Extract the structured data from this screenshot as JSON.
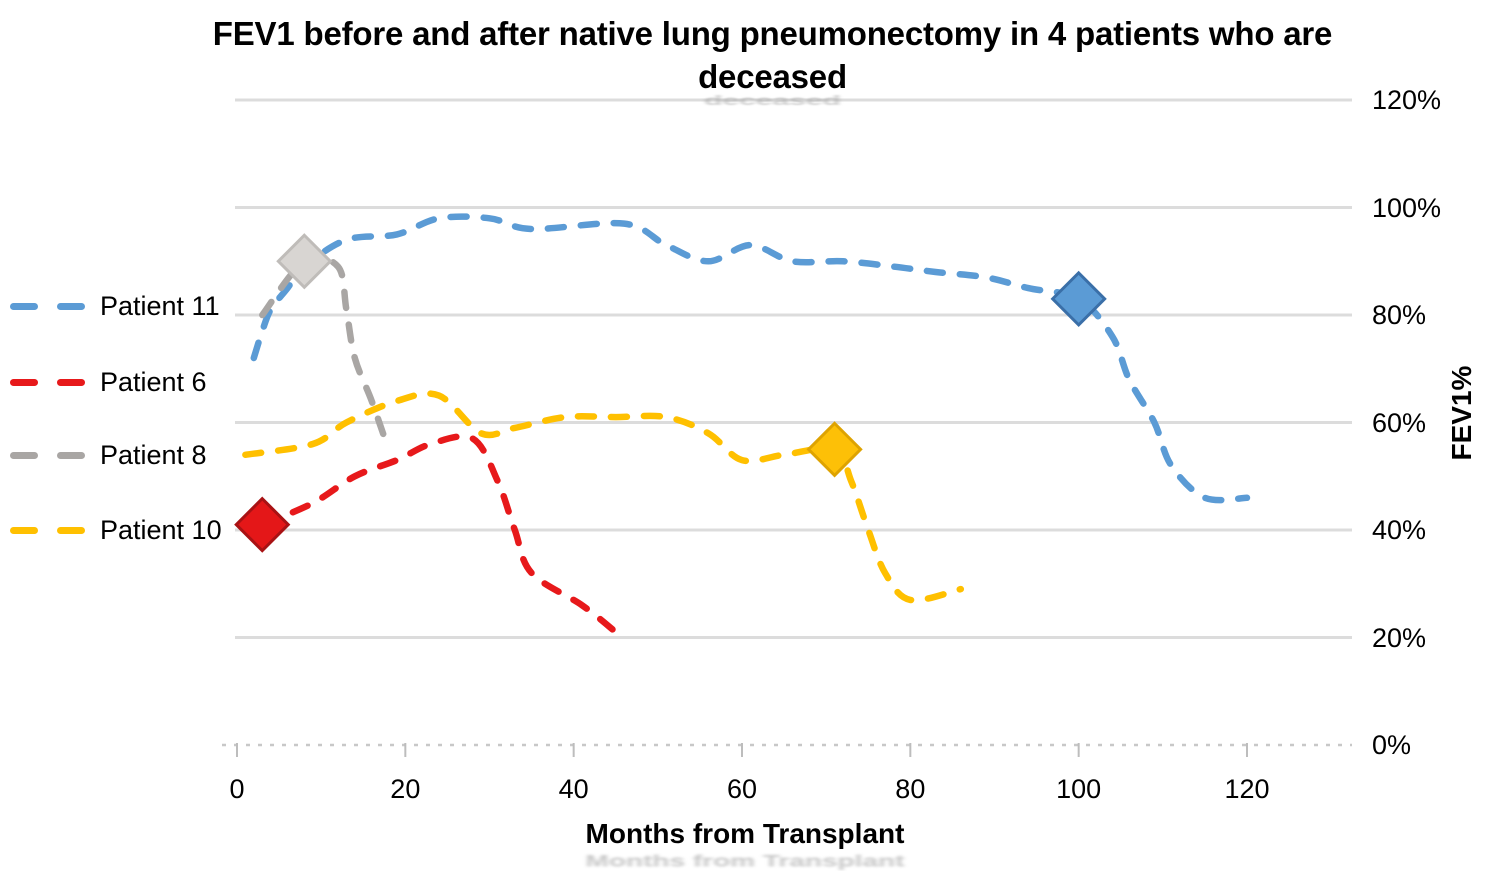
{
  "title": {
    "line1": "FEV1 before and after native lung pneumonectomy in 4 patients who are",
    "line2": "deceased"
  },
  "chart_data": {
    "type": "line",
    "title": "FEV1 before and after native lung pneumonectomy in 4 patients who are deceased",
    "xlabel": "Months from Transplant",
    "ylabel": "FEV1%",
    "xlim": [
      0,
      132
    ],
    "ylim": [
      0,
      120
    ],
    "grid": "horizontal-only",
    "grid_color": "#DCDCDC",
    "axis_line_color": "#C8C8C8",
    "text_color": "#000000",
    "legend_position": "left",
    "line_style": "dashed",
    "marker_shape": "diamond",
    "x_ticks": [
      {
        "v": 0,
        "label": "0"
      },
      {
        "v": 20,
        "label": "20"
      },
      {
        "v": 40,
        "label": "40"
      },
      {
        "v": 60,
        "label": "60"
      },
      {
        "v": 80,
        "label": "80"
      },
      {
        "v": 100,
        "label": "100"
      },
      {
        "v": 120,
        "label": "120"
      }
    ],
    "y_ticks": [
      {
        "v": 120,
        "label": "120%"
      },
      {
        "v": 100,
        "label": "100%"
      },
      {
        "v": 80,
        "label": "80%"
      },
      {
        "v": 60,
        "label": "60%"
      },
      {
        "v": 40,
        "label": "40%"
      },
      {
        "v": 20,
        "label": "20%"
      },
      {
        "v": 0,
        "label": "0%"
      }
    ],
    "series": [
      {
        "name": "Patient 11",
        "line_color": "#5B9BD5",
        "marker": {
          "x": 100,
          "y": 83,
          "fill": "#5B9BD5",
          "edge": "#3A6FA8"
        },
        "points": [
          [
            2,
            72
          ],
          [
            3,
            77
          ],
          [
            4,
            81
          ],
          [
            6,
            85
          ],
          [
            8,
            89
          ],
          [
            13,
            94
          ],
          [
            19,
            95
          ],
          [
            24,
            98
          ],
          [
            30,
            98
          ],
          [
            35,
            96
          ],
          [
            46,
            97
          ],
          [
            51,
            93
          ],
          [
            56,
            90
          ],
          [
            61,
            93
          ],
          [
            66,
            90
          ],
          [
            72,
            90
          ],
          [
            78,
            89
          ],
          [
            83,
            88
          ],
          [
            89,
            87
          ],
          [
            94,
            85
          ],
          [
            100,
            83
          ],
          [
            104,
            76
          ],
          [
            106,
            68
          ],
          [
            109,
            60
          ],
          [
            111,
            52
          ],
          [
            115,
            46
          ],
          [
            120,
            46
          ]
        ]
      },
      {
        "name": "Patient 6",
        "line_color": "#E7191B",
        "marker": {
          "x": 3,
          "y": 41,
          "fill": "#E41718",
          "edge": "#A81214"
        },
        "points": [
          [
            3,
            41
          ],
          [
            9,
            45
          ],
          [
            14,
            50
          ],
          [
            19,
            53
          ],
          [
            23,
            56
          ],
          [
            28,
            57
          ],
          [
            31,
            49
          ],
          [
            33,
            40
          ],
          [
            35,
            32
          ],
          [
            41,
            26
          ],
          [
            45,
            21
          ]
        ]
      },
      {
        "name": "Patient 8",
        "line_color": "#A9A6A4",
        "marker": {
          "x": 8,
          "y": 90,
          "fill": "#D8D5D2",
          "edge": "#BFBCB9"
        },
        "points": [
          [
            3,
            80
          ],
          [
            8,
            90
          ],
          [
            12,
            89
          ],
          [
            13,
            81
          ],
          [
            14,
            72
          ],
          [
            16,
            64
          ],
          [
            18,
            55
          ]
        ]
      },
      {
        "name": "Patient 10",
        "line_color": "#FFC000",
        "marker": {
          "x": 71,
          "y": 55,
          "fill": "#FDC007",
          "edge": "#DEA301"
        },
        "points": [
          [
            1,
            54
          ],
          [
            9,
            56
          ],
          [
            13,
            60
          ],
          [
            19,
            64
          ],
          [
            24,
            65
          ],
          [
            29,
            58
          ],
          [
            33,
            59
          ],
          [
            39,
            61
          ],
          [
            45,
            61
          ],
          [
            51,
            61
          ],
          [
            56,
            58
          ],
          [
            60,
            53
          ],
          [
            65,
            54
          ],
          [
            71,
            55
          ],
          [
            73,
            49
          ],
          [
            75,
            40
          ],
          [
            77,
            32
          ],
          [
            80,
            27
          ],
          [
            86,
            29
          ]
        ]
      }
    ]
  }
}
